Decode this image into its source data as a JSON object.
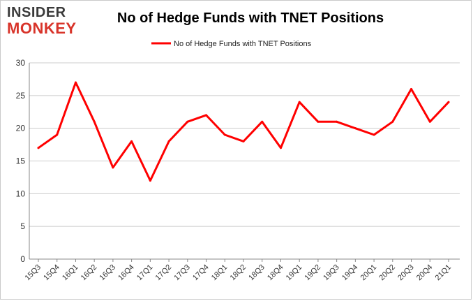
{
  "logo": {
    "line1": "INSIDER",
    "line2": "MONKEY"
  },
  "colors": {
    "series": "#ff0000",
    "grid": "#cccccc",
    "axis": "#888888",
    "brand_red": "#d8342a"
  },
  "chart_data": {
    "type": "line",
    "title": "No of Hedge Funds with TNET Positions",
    "xlabel": "",
    "ylabel": "",
    "categories": [
      "15Q3",
      "15Q4",
      "16Q1",
      "16Q2",
      "16Q3",
      "16Q4",
      "17Q1",
      "17Q2",
      "17Q3",
      "17Q4",
      "18Q1",
      "18Q2",
      "18Q3",
      "18Q4",
      "19Q1",
      "19Q2",
      "19Q3",
      "19Q4",
      "20Q1",
      "20Q2",
      "20Q3",
      "20Q4",
      "21Q1"
    ],
    "series": [
      {
        "name": "No of Hedge Funds with TNET Positions",
        "values": [
          17,
          19,
          27,
          21,
          14,
          18,
          12,
          18,
          21,
          22,
          19,
          18,
          21,
          17,
          24,
          21,
          21,
          20,
          19,
          21,
          26,
          21,
          24
        ]
      }
    ],
    "ylim": [
      0,
      30
    ],
    "yticks": [
      0,
      5,
      10,
      15,
      20,
      25,
      30
    ],
    "grid": true,
    "legend_position": "top-center"
  }
}
